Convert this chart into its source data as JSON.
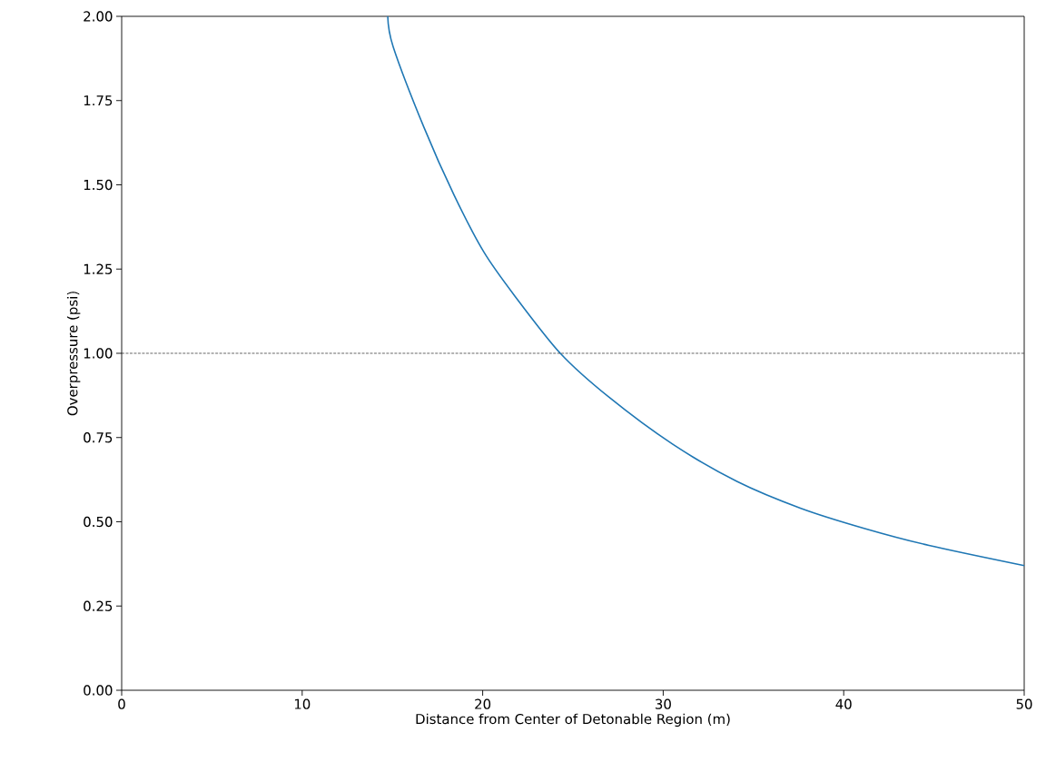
{
  "chart_data": {
    "type": "line",
    "xlabel": "Distance from Center of Detonable Region (m)",
    "ylabel": "Overpressure (psi)",
    "xlim": [
      0,
      50
    ],
    "ylim": [
      0,
      2
    ],
    "xticks": [
      0,
      10,
      20,
      30,
      40,
      50
    ],
    "yticks": [
      {
        "value": 0,
        "label": "0.00"
      },
      {
        "value": 0.25,
        "label": "0.25"
      },
      {
        "value": 0.5,
        "label": "0.50"
      },
      {
        "value": 0.75,
        "label": "0.75"
      },
      {
        "value": 1,
        "label": "1.00"
      },
      {
        "value": 1.25,
        "label": "1.25"
      },
      {
        "value": 1.5,
        "label": "1.50"
      },
      {
        "value": 1.75,
        "label": "1.75"
      },
      {
        "value": 2,
        "label": "2.00"
      }
    ],
    "grid": false,
    "marker": "none",
    "line_style": "solid",
    "ref_lines": [
      {
        "axis": "y",
        "value": 1,
        "color": "#000000",
        "line_style": "dashed"
      }
    ],
    "series": [
      {
        "color": "#1f77b4",
        "x": [
          14.74,
          15.04,
          16.75,
          18.41,
          20.07,
          21.78,
          24.3,
          26.99,
          30.53,
          34.08,
          37.63,
          41.17,
          44.72,
          50
        ],
        "values": [
          2.0,
          1.91,
          1.67,
          1.47,
          1.3,
          1.17,
          1.0,
          0.87,
          0.73,
          0.62,
          0.54,
          0.48,
          0.43,
          0.37
        ]
      }
    ]
  }
}
